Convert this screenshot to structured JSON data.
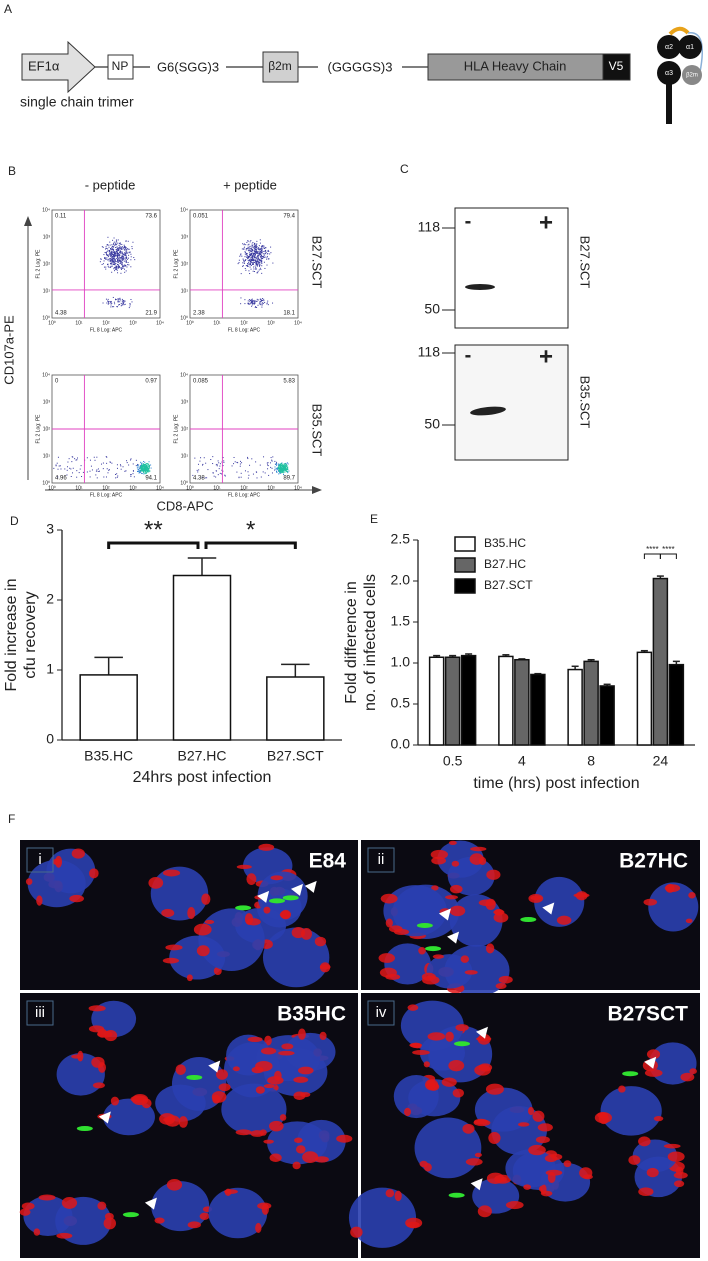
{
  "panel_a": {
    "label": "A",
    "elements": [
      "EF1α",
      "NP",
      "G6(SGG)3",
      "β2m",
      "(GGGGS)3",
      "HLA Heavy Chain",
      "V5"
    ],
    "caption": "single chain trimer",
    "icon_labels": [
      "α2",
      "α1",
      "α3",
      "β2m"
    ]
  },
  "panel_b": {
    "label": "B",
    "columns": [
      "- peptide",
      "+ peptide"
    ],
    "rows": [
      "B27.SCT",
      "B35.SCT"
    ],
    "y_axis": "CD107a-PE",
    "x_axis": "CD8-APC",
    "plot_y_label": "FL 2 Log: PE",
    "plot_x_label": "FL 8 Log: APC",
    "ticks": [
      "10⁰",
      "10¹",
      "10²",
      "10³",
      "10⁴"
    ],
    "plots": [
      {
        "quadrants": [
          "0.11",
          "73.6",
          "4.38",
          "21.9"
        ]
      },
      {
        "quadrants": [
          "0.051",
          "79.4",
          "2.38",
          "18.1"
        ]
      },
      {
        "quadrants": [
          "0",
          "0.97",
          "4.96",
          "94.1"
        ]
      },
      {
        "quadrants": [
          "0.085",
          "5.83",
          "4.38",
          "89.7"
        ]
      }
    ]
  },
  "panel_c": {
    "label": "C",
    "blots": [
      {
        "name": "B27.SCT",
        "markers": [
          "118",
          "50"
        ],
        "lanes": [
          "-",
          "+"
        ]
      },
      {
        "name": "B35.SCT",
        "markers": [
          "118",
          "50"
        ],
        "lanes": [
          "-",
          "+"
        ]
      }
    ]
  },
  "chart_data": [
    {
      "type": "bar",
      "panel": "D",
      "ylabel": [
        "Fold increase in",
        "cfu recovery"
      ],
      "xlabel": "24hrs post infection",
      "categories": [
        "B35.HC",
        "B27.HC",
        "B27.SCT"
      ],
      "values": [
        0.93,
        2.35,
        0.9
      ],
      "errors": [
        0.25,
        0.25,
        0.18
      ],
      "color": "#ffffff",
      "ylim": [
        0,
        3
      ],
      "yticks": [
        0,
        1,
        2,
        3
      ],
      "significance": [
        "**",
        "*"
      ]
    },
    {
      "type": "grouped-bar",
      "panel": "E",
      "ylabel": [
        "Fold difference in",
        "no. of infected cells"
      ],
      "xlabel": "time (hrs) post infection",
      "categories": [
        "0.5",
        "4",
        "8",
        "24"
      ],
      "series": [
        {
          "name": "B35.HC",
          "color": "#ffffff",
          "values": [
            1.07,
            1.08,
            0.92,
            1.13
          ],
          "errors": [
            0.02,
            0.02,
            0.04,
            0.02
          ]
        },
        {
          "name": "B27.HC",
          "color": "#666666",
          "values": [
            1.07,
            1.04,
            1.02,
            2.03
          ],
          "errors": [
            0.02,
            0.01,
            0.02,
            0.03
          ]
        },
        {
          "name": "B27.SCT",
          "color": "#000000",
          "values": [
            1.09,
            0.86,
            0.72,
            0.98
          ],
          "errors": [
            0.02,
            0.01,
            0.02,
            0.04
          ]
        }
      ],
      "ylim": [
        0,
        2.5
      ],
      "yticks": [
        {
          "value": 0,
          "label": "0.0"
        },
        0.5,
        {
          "value": 1,
          "label": "1.0"
        },
        1.5,
        {
          "value": 2,
          "label": "2.0"
        },
        2.5
      ],
      "significance": [
        "****",
        "****"
      ]
    }
  ],
  "panel_f": {
    "label": "F",
    "images": [
      {
        "numeral": "i",
        "name": "E84"
      },
      {
        "numeral": "ii",
        "name": "B27HC"
      },
      {
        "numeral": "iii",
        "name": "B35HC"
      },
      {
        "numeral": "iv",
        "name": "B27SCT"
      }
    ]
  }
}
